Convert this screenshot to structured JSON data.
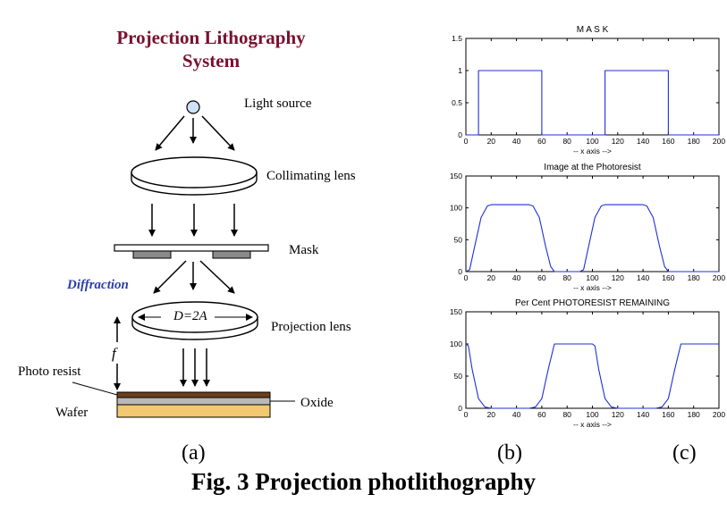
{
  "diagram": {
    "title_line1": "Projection Lithography",
    "title_line2": "System",
    "light_source": "Light source",
    "collimating_lens": "Collimating lens",
    "mask": "Mask",
    "diffraction": "Diffraction",
    "lens_formula": "D=2A",
    "projection_lens": "Projection lens",
    "focal": "f",
    "photo_resist": "Photo resist",
    "oxide": "Oxide",
    "wafer": "Wafer"
  },
  "panels": {
    "a": "(a)",
    "b": "(b)",
    "c": "(c)"
  },
  "caption": "Fig. 3 Projection photlithography",
  "colors": {
    "title": "#7a1030",
    "diffraction": "#2b3fa8",
    "curve": "#1f2fd6",
    "light_source_fill": "#cfe3f6",
    "mask_block": "#8a8a8a",
    "photoresist": "#6b3f1c",
    "oxide_layer": "#b9b9b9",
    "wafer_layer": "#f2c870"
  },
  "chart_data": [
    {
      "type": "line",
      "title": "M A S K",
      "xlabel": "-- x axis -->",
      "xlim": [
        0,
        200
      ],
      "ylim": [
        0,
        1.5
      ],
      "xticks": [
        "0",
        "20",
        "40",
        "60",
        "80",
        "100",
        "120",
        "140",
        "160",
        "180",
        "200"
      ],
      "yticks": [
        "0",
        "0.5",
        "1",
        "1.5"
      ],
      "series": [
        {
          "x": [
            0,
            10,
            10,
            60,
            60,
            110,
            110,
            160,
            160,
            200
          ],
          "y": [
            0,
            0,
            1,
            1,
            0,
            0,
            1,
            1,
            0,
            0
          ]
        }
      ]
    },
    {
      "type": "line",
      "title": "Image at the Photoresist",
      "xlabel": "-- x axis -->",
      "xlim": [
        0,
        200
      ],
      "ylim": [
        0,
        150
      ],
      "xticks": [
        "0",
        "20",
        "40",
        "60",
        "80",
        "100",
        "120",
        "140",
        "160",
        "180",
        "200"
      ],
      "yticks": [
        "0",
        "50",
        "100",
        "150"
      ],
      "series": [
        {
          "x": [
            0,
            3,
            7,
            12,
            17,
            20,
            30,
            50,
            53,
            58,
            63,
            67,
            70,
            90,
            93,
            97,
            102,
            107,
            110,
            120,
            140,
            143,
            148,
            153,
            157,
            160,
            200
          ],
          "y": [
            0,
            3,
            40,
            85,
            103,
            105,
            105,
            105,
            103,
            85,
            40,
            8,
            0,
            0,
            3,
            40,
            85,
            103,
            105,
            105,
            105,
            103,
            85,
            40,
            8,
            0,
            0
          ]
        }
      ]
    },
    {
      "type": "line",
      "title": "Per Cent PHOTORESIST REMAINING",
      "xlabel": "-- x axis -->",
      "xlim": [
        0,
        200
      ],
      "ylim": [
        0,
        150
      ],
      "xticks": [
        "0",
        "20",
        "40",
        "60",
        "80",
        "100",
        "120",
        "140",
        "160",
        "180",
        "200"
      ],
      "yticks": [
        "0",
        "50",
        "100",
        "150"
      ],
      "series": [
        {
          "x": [
            0,
            2,
            5,
            10,
            15,
            20,
            50,
            55,
            60,
            65,
            70,
            100,
            102,
            105,
            110,
            115,
            120,
            150,
            155,
            160,
            165,
            170,
            200
          ],
          "y": [
            100,
            97,
            60,
            15,
            2,
            0,
            0,
            2,
            15,
            60,
            100,
            100,
            97,
            60,
            15,
            2,
            0,
            0,
            2,
            15,
            60,
            100,
            100
          ]
        }
      ]
    }
  ]
}
